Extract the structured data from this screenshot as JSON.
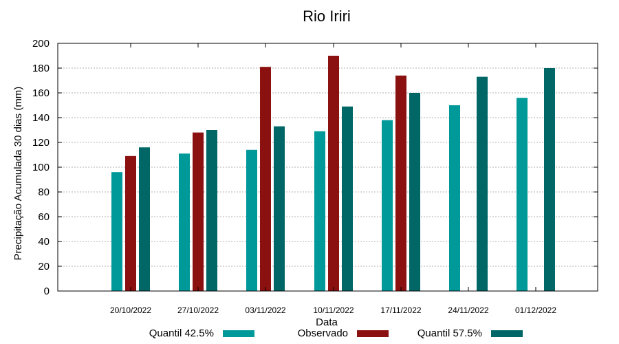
{
  "chart_data": {
    "type": "bar",
    "title": "Rio Iriri",
    "xlabel": "Data",
    "ylabel": "Precipitação Acumulada 30 dias (mm)",
    "ylim": [
      0,
      200
    ],
    "yticks": [
      0,
      20,
      40,
      60,
      80,
      100,
      120,
      140,
      160,
      180,
      200
    ],
    "grid": true,
    "legend_position": "bottom",
    "categories": [
      "20/10/2022",
      "27/10/2022",
      "03/11/2022",
      "10/11/2022",
      "17/11/2022",
      "24/11/2022",
      "01/12/2022"
    ],
    "series": [
      {
        "name": "Quantil 42.5%",
        "color": "#009999",
        "values": [
          96,
          111,
          114,
          129,
          138,
          150,
          156
        ]
      },
      {
        "name": "Observado",
        "color": "#8b1010",
        "values": [
          109,
          128,
          181,
          190,
          174,
          null,
          null
        ]
      },
      {
        "name": "Quantil 57.5%",
        "color": "#006666",
        "values": [
          116,
          130,
          133,
          149,
          160,
          173,
          180
        ]
      }
    ]
  }
}
